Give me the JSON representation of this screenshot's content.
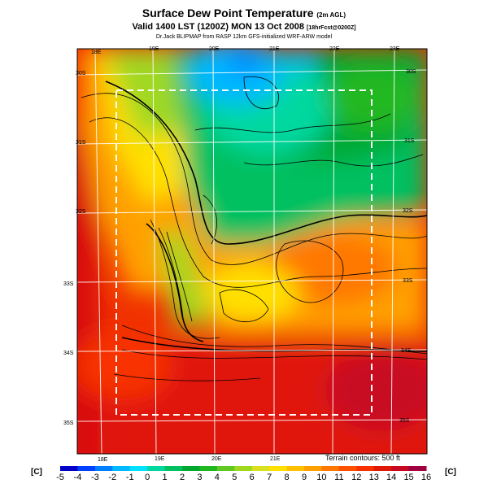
{
  "header": {
    "title": "Surface Dew Point Temperature",
    "title_suffix": "(2m AGL)",
    "valid_line": "Valid 1400 LST (1200Z) MON 13 Oct 2008",
    "valid_suffix": "[18hrFcst@0200Z]",
    "credit": "Dr.Jack BLIPMAP from RASP 12km GFS-initialized WRF-ARW model"
  },
  "map": {
    "lon_labels_top": [
      "18E",
      "19E",
      "20E",
      "21E",
      "22E",
      "23E"
    ],
    "lon_labels_bottom": [
      "18E",
      "19E",
      "20E",
      "21E"
    ],
    "lat_labels_left": [
      "30S",
      "31S",
      "32S",
      "33S",
      "34S",
      "35S"
    ],
    "lat_labels_right": [
      "30S",
      "31S",
      "32S",
      "33S",
      "34S",
      "35S"
    ],
    "terrain_note": "Terrain contours: 500 ft"
  },
  "colorbar": {
    "unit_left": "[C]",
    "unit_right": "[C]",
    "ticks": [
      "-5",
      "-4",
      "-3",
      "-2",
      "-1",
      "0",
      "1",
      "2",
      "3",
      "4",
      "5",
      "6",
      "7",
      "8",
      "9",
      "10",
      "11",
      "12",
      "13",
      "14",
      "15",
      "16"
    ],
    "colors": [
      "#0000c8",
      "#0040ff",
      "#0080ff",
      "#00b8ff",
      "#00e0ff",
      "#00d8a0",
      "#00c060",
      "#00a830",
      "#20b820",
      "#60c820",
      "#a0d820",
      "#d8e020",
      "#ffe000",
      "#ffc000",
      "#ffa000",
      "#ff7800",
      "#ff5000",
      "#f83000",
      "#e01808",
      "#c80820",
      "#a00040"
    ]
  }
}
